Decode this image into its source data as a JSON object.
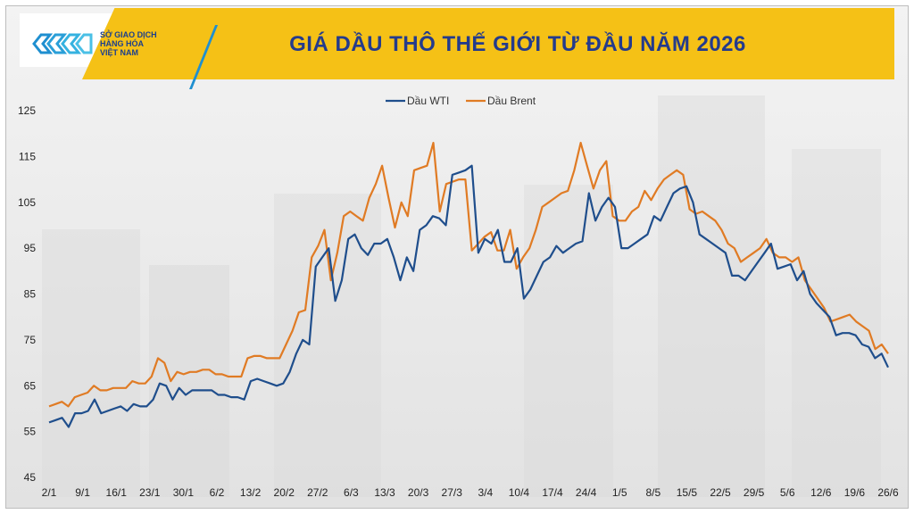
{
  "header": {
    "logo_lines": [
      "SỞ GIAO DỊCH",
      "HÀNG HÓA",
      "VIỆT NAM"
    ],
    "title": "GIÁ DẦU THÔ THẾ GIỚI TỪ ĐẦU NĂM 2026"
  },
  "colors": {
    "header": "#f5c116",
    "title": "#243b8c",
    "wti": "#1f4e8c",
    "brent": "#e07b24"
  },
  "chart_data": {
    "type": "line",
    "title": "GIÁ DẦU THÔ THẾ GIỚI TỪ ĐẦU NĂM 2026",
    "xlabel": "",
    "ylabel": "",
    "ylim": [
      45,
      125
    ],
    "yticks": [
      45,
      55,
      65,
      75,
      85,
      95,
      105,
      115,
      125
    ],
    "grid": false,
    "legend_position": "top-center",
    "x_tick_labels": [
      "2/1",
      "9/1",
      "16/1",
      "23/1",
      "30/1",
      "6/2",
      "13/2",
      "20/2",
      "27/2",
      "6/3",
      "13/3",
      "20/3",
      "27/3",
      "3/4",
      "10/4",
      "17/4",
      "24/4",
      "1/5",
      "8/5",
      "15/5",
      "22/5",
      "29/5",
      "5/6",
      "12/6",
      "19/6",
      "26/6"
    ],
    "series": [
      {
        "name": "Dầu WTI",
        "color": "#1f4e8c",
        "values": [
          57,
          57.5,
          58,
          56,
          59,
          59,
          59.5,
          62,
          59,
          59.5,
          60,
          60.5,
          59.5,
          61,
          60.5,
          60.5,
          62,
          65.5,
          65,
          62,
          64.5,
          63,
          64,
          64,
          64,
          64,
          63,
          63,
          62.5,
          62.5,
          62,
          66,
          66.5,
          66,
          65.5,
          65,
          65.5,
          68,
          72,
          75,
          74,
          91,
          93,
          95,
          83.5,
          88,
          97,
          98,
          95,
          93.5,
          96,
          96,
          97,
          93,
          88,
          93,
          90,
          99,
          100,
          102,
          101.5,
          100,
          111,
          111.5,
          112,
          113,
          94,
          97,
          96,
          99,
          92,
          92,
          95,
          84,
          86,
          89,
          92,
          93,
          95.5,
          94,
          95,
          96,
          96.5,
          107,
          101,
          104,
          106,
          104,
          95,
          95,
          96,
          97,
          98,
          102,
          101,
          104,
          107,
          108,
          108.5,
          105,
          98,
          97,
          96,
          95,
          94,
          89,
          89,
          88,
          90,
          92,
          94,
          96,
          90.5,
          91,
          91.5,
          88,
          90,
          85,
          83,
          81.5,
          80,
          76,
          76.5,
          76.5,
          76,
          74,
          73.5,
          71,
          72,
          69
        ]
      },
      {
        "name": "Dầu Brent",
        "color": "#e07b24",
        "values": [
          60.5,
          61,
          61.5,
          60.5,
          62.5,
          63,
          63.5,
          65,
          64,
          64,
          64.5,
          64.5,
          64.5,
          66,
          65.5,
          65.5,
          67,
          71,
          70,
          66,
          68,
          67.5,
          68,
          68,
          68.5,
          68.5,
          67.5,
          67.5,
          67,
          67,
          67,
          71,
          71.5,
          71.5,
          71,
          71,
          71,
          74,
          77,
          81,
          81.5,
          93,
          95.5,
          99,
          88,
          94,
          102,
          103,
          102,
          101,
          106,
          109,
          113,
          106,
          99.5,
          105,
          102,
          112,
          112.5,
          113,
          118,
          103,
          109,
          109.5,
          110,
          110,
          94.5,
          96,
          97.5,
          98.5,
          94.5,
          94.5,
          99,
          90.5,
          93,
          95,
          99,
          104,
          105,
          106,
          107,
          107.5,
          112,
          118,
          113,
          108,
          112,
          114,
          102,
          101,
          101,
          103,
          104,
          107.5,
          105.5,
          108,
          110,
          111,
          112,
          111,
          103.5,
          102.5,
          103,
          102,
          101,
          99,
          96,
          95,
          92,
          93,
          94,
          95,
          97,
          94,
          93,
          93,
          92,
          93,
          88,
          86,
          84,
          82,
          79,
          79.5,
          80,
          80.5,
          79,
          78,
          77,
          73,
          74,
          72
        ]
      }
    ]
  }
}
